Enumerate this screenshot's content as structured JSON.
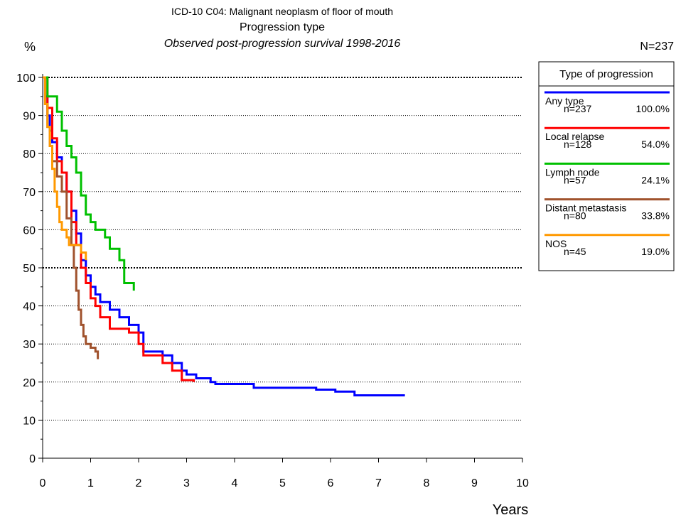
{
  "chart_data": {
    "type": "step",
    "title": "ICD-10 C04: Malignant neoplasm of floor of mouth",
    "subtitle": "Progression type",
    "subtitle2": "Observed post-progression survival 1998-2016",
    "y_label": "%",
    "x_label": "Years",
    "total_label": "N=237",
    "legend_title": "Type of progression",
    "xlim": [
      0,
      10
    ],
    "ylim": [
      0,
      100
    ],
    "xticks": [
      0,
      1,
      2,
      3,
      4,
      5,
      6,
      7,
      8,
      9,
      10
    ],
    "yticks": [
      0,
      10,
      20,
      30,
      40,
      50,
      60,
      70,
      80,
      90,
      100
    ],
    "grid": true,
    "bold_grid_at": [
      50,
      100
    ],
    "series": [
      {
        "name": "Any type",
        "n_label": "n=237",
        "share_label": "100.0%",
        "color": "#0000ff",
        "x": [
          0,
          0.05,
          0.1,
          0.15,
          0.2,
          0.3,
          0.4,
          0.5,
          0.6,
          0.7,
          0.8,
          0.9,
          1.0,
          1.1,
          1.2,
          1.4,
          1.6,
          1.8,
          2.0,
          2.1,
          2.3,
          2.5,
          2.7,
          2.9,
          3.0,
          3.2,
          3.5,
          3.6,
          4.4,
          5.0,
          5.7,
          6.1,
          6.5,
          7.55
        ],
        "values": [
          100,
          95,
          90,
          86,
          83,
          79,
          75,
          70,
          65,
          59,
          52,
          48,
          45,
          43,
          41,
          39,
          37,
          35,
          33,
          28,
          28,
          27,
          25,
          23,
          22,
          21,
          20,
          19.5,
          18.5,
          18.5,
          18,
          17.5,
          16.5,
          16.5
        ]
      },
      {
        "name": "Local relapse",
        "n_label": "n=128",
        "share_label": "54.0%",
        "color": "#ff0000",
        "x": [
          0,
          0.1,
          0.2,
          0.3,
          0.4,
          0.5,
          0.6,
          0.7,
          0.8,
          0.9,
          1.0,
          1.1,
          1.2,
          1.4,
          1.8,
          2.0,
          2.1,
          2.5,
          2.7,
          2.9,
          3.15
        ],
        "values": [
          100,
          92,
          84,
          78,
          75,
          70,
          62,
          56,
          50,
          46,
          42,
          40,
          37,
          34,
          33,
          30,
          27,
          25,
          23,
          20.5,
          20
        ]
      },
      {
        "name": "Lymph node",
        "n_label": "n=57",
        "share_label": "24.1%",
        "color": "#00c000",
        "x": [
          0,
          0.1,
          0.3,
          0.4,
          0.5,
          0.6,
          0.7,
          0.8,
          0.9,
          1.0,
          1.1,
          1.3,
          1.4,
          1.6,
          1.7,
          1.9
        ],
        "values": [
          100,
          95,
          91,
          86,
          82,
          79,
          75,
          69,
          64,
          62,
          60,
          58,
          55,
          52,
          46,
          44
        ]
      },
      {
        "name": "Distant metastasis",
        "n_label": "n=80",
        "share_label": "33.8%",
        "color": "#a0522d",
        "x": [
          0,
          0.05,
          0.1,
          0.15,
          0.2,
          0.3,
          0.4,
          0.5,
          0.6,
          0.65,
          0.7,
          0.75,
          0.8,
          0.85,
          0.9,
          1.0,
          1.1,
          1.15
        ],
        "values": [
          100,
          93,
          87,
          82,
          78,
          74,
          70,
          63,
          56,
          50,
          44,
          39,
          35,
          32,
          30,
          29,
          28,
          26
        ]
      },
      {
        "name": "NOS",
        "n_label": "n=45",
        "share_label": "19.0%",
        "color": "#ff9900",
        "x": [
          0,
          0.05,
          0.1,
          0.15,
          0.2,
          0.25,
          0.3,
          0.35,
          0.4,
          0.5,
          0.55,
          0.6,
          0.8,
          0.9
        ],
        "values": [
          100,
          93,
          87,
          82,
          76,
          70,
          66,
          62,
          60,
          58,
          56,
          56,
          54,
          52
        ]
      }
    ]
  }
}
